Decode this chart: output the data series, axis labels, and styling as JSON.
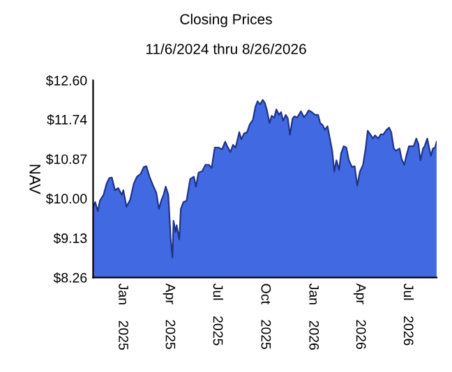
{
  "chart_data": {
    "type": "area",
    "title": "Closing Prices",
    "subtitle": "11/6/2024 thru 8/26/2026",
    "ylabel": "NAV",
    "x": [
      "2024-11-06",
      "2024-11-10",
      "2024-11-15",
      "2024-11-19",
      "2024-11-26",
      "2024-12-02",
      "2024-12-07",
      "2024-12-12",
      "2024-12-18",
      "2024-12-24",
      "2024-12-31",
      "2025-01-03",
      "2025-01-09",
      "2025-01-16",
      "2025-01-23",
      "2025-01-29",
      "2025-02-05",
      "2025-02-11",
      "2025-02-16",
      "2025-02-22",
      "2025-03-01",
      "2025-03-07",
      "2025-03-12",
      "2025-03-17",
      "2025-03-21",
      "2025-03-25",
      "2025-03-30",
      "2025-04-01",
      "2025-04-04",
      "2025-04-07",
      "2025-04-09",
      "2025-04-13",
      "2025-04-15",
      "2025-04-20",
      "2025-04-23",
      "2025-04-28",
      "2025-05-04",
      "2025-05-11",
      "2025-05-18",
      "2025-05-22",
      "2025-05-27",
      "2025-06-03",
      "2025-06-09",
      "2025-06-16",
      "2025-06-21",
      "2025-06-27",
      "2025-07-04",
      "2025-07-11",
      "2025-07-17",
      "2025-07-21",
      "2025-07-27",
      "2025-08-01",
      "2025-08-06",
      "2025-08-13",
      "2025-08-17",
      "2025-08-22",
      "2025-08-28",
      "2025-09-02",
      "2025-09-08",
      "2025-09-13",
      "2025-09-17",
      "2025-09-22",
      "2025-09-27",
      "2025-10-01",
      "2025-10-05",
      "2025-10-10",
      "2025-10-14",
      "2025-10-19",
      "2025-10-23",
      "2025-10-28",
      "2025-11-01",
      "2025-11-05",
      "2025-11-10",
      "2025-11-14",
      "2025-11-18",
      "2025-11-23",
      "2025-11-27",
      "2025-12-02",
      "2025-12-09",
      "2025-12-15",
      "2025-12-20",
      "2025-12-24",
      "2025-12-30",
      "2026-01-05",
      "2026-01-11",
      "2026-01-15",
      "2026-01-20",
      "2026-01-24",
      "2026-01-29",
      "2026-02-02",
      "2026-02-07",
      "2026-02-11",
      "2026-02-15",
      "2026-02-20",
      "2026-02-24",
      "2026-03-01",
      "2026-03-06",
      "2026-03-11",
      "2026-03-17",
      "2026-03-22",
      "2026-03-27",
      "2026-04-01",
      "2026-04-07",
      "2026-04-12",
      "2026-04-16",
      "2026-04-21",
      "2026-04-26",
      "2026-04-30",
      "2026-05-06",
      "2026-05-11",
      "2026-05-16",
      "2026-05-22",
      "2026-05-27",
      "2026-05-31",
      "2026-06-05",
      "2026-06-09",
      "2026-06-16",
      "2026-06-20",
      "2026-06-25",
      "2026-06-29",
      "2026-07-04",
      "2026-07-13",
      "2026-07-18",
      "2026-07-22",
      "2026-07-26",
      "2026-07-31",
      "2026-08-03",
      "2026-08-08",
      "2026-08-12",
      "2026-08-15",
      "2026-08-19",
      "2026-08-23",
      "2026-08-26"
    ],
    "series": [
      {
        "color": "#4169e1",
        "values": [
          9.82,
          9.92,
          9.72,
          9.95,
          10.08,
          10.33,
          10.45,
          10.46,
          10.18,
          10.23,
          10.08,
          10.18,
          9.82,
          9.97,
          10.33,
          10.48,
          10.54,
          10.69,
          10.71,
          10.48,
          10.28,
          10.13,
          9.77,
          9.97,
          10.08,
          10.26,
          10.08,
          9.67,
          9.05,
          8.7,
          9.51,
          9.26,
          9.41,
          9.1,
          9.77,
          9.92,
          9.95,
          10.43,
          10.48,
          10.26,
          10.57,
          10.6,
          10.74,
          10.74,
          10.67,
          11.12,
          11.12,
          11.08,
          11.25,
          11.15,
          11.02,
          11.18,
          11.12,
          11.46,
          11.3,
          11.43,
          11.46,
          11.63,
          11.73,
          12.02,
          12.14,
          12.07,
          12.17,
          12.1,
          11.94,
          11.66,
          11.82,
          11.78,
          11.96,
          11.84,
          11.9,
          11.71,
          11.84,
          11.76,
          11.4,
          11.76,
          11.81,
          11.78,
          11.92,
          11.79,
          11.86,
          11.94,
          11.9,
          11.84,
          11.84,
          11.66,
          11.61,
          11.51,
          11.59,
          11.35,
          11.05,
          10.59,
          10.84,
          10.63,
          10.99,
          11.15,
          11.12,
          10.84,
          10.69,
          10.71,
          10.28,
          10.59,
          10.74,
          11.1,
          11.49,
          11.41,
          11.32,
          11.39,
          11.32,
          11.41,
          11.41,
          11.51,
          11.56,
          11.46,
          11.1,
          11.05,
          11.1,
          10.87,
          10.74,
          10.94,
          11.15,
          11.15,
          11.32,
          11.2,
          10.84,
          11.1,
          11.15,
          11.32,
          11.1,
          10.94,
          11.1,
          11.12,
          11.25
        ]
      }
    ],
    "xlim": [
      "2024-11-06",
      "2026-08-26"
    ],
    "xticks": [
      {
        "value": "2025-01-01",
        "label": "Jan 2025"
      },
      {
        "value": "2025-04-01",
        "label": "Apr 2025"
      },
      {
        "value": "2025-07-01",
        "label": "Jul 2025"
      },
      {
        "value": "2025-10-01",
        "label": "Oct 2025"
      },
      {
        "value": "2026-01-01",
        "label": "Jan 2026"
      },
      {
        "value": "2026-04-01",
        "label": "Apr 2026"
      },
      {
        "value": "2026-07-01",
        "label": "Jul 2026"
      }
    ],
    "ylim": [
      8.26,
      12.6
    ],
    "yticks": [
      {
        "value": 8.26,
        "label": "$8.26"
      },
      {
        "value": 9.13,
        "label": "$9.13"
      },
      {
        "value": 10.0,
        "label": "$10.00"
      },
      {
        "value": 10.87,
        "label": "$10.87"
      },
      {
        "value": 11.74,
        "label": "$11.74"
      },
      {
        "value": 12.6,
        "label": "$12.60"
      }
    ],
    "grid": false
  }
}
